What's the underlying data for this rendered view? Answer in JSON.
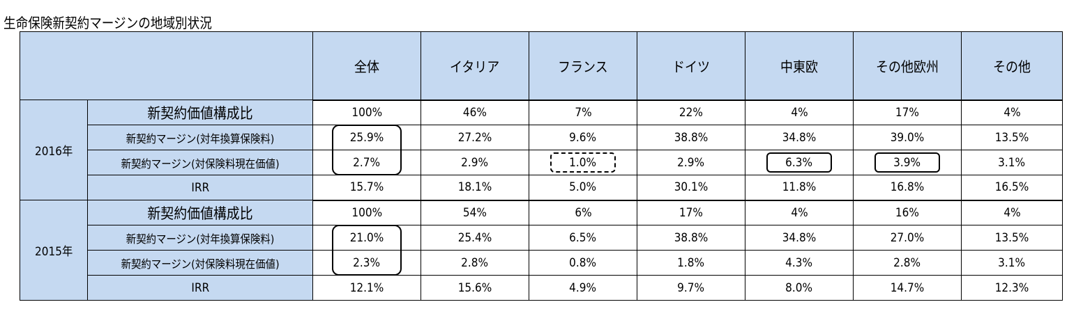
{
  "title": "生命保険新契約マージンの地域別状況",
  "columns": [
    "全体",
    "イタリア",
    "フランス",
    "ドイツ",
    "中東欧",
    "その他欧州",
    "その他"
  ],
  "groups": [
    {
      "year": "2016年",
      "rows": [
        {
          "label": "新契約価値構成比",
          "values": [
            "100%",
            "46%",
            "7%",
            "22%",
            "4%",
            "17%",
            "4%"
          ]
        },
        {
          "label": "新契約マージン(対年換算保険料)",
          "values": [
            "25.9%",
            "27.2%",
            "9.6%",
            "38.8%",
            "34.8%",
            "39.0%",
            "13.5%"
          ]
        },
        {
          "label": "新契約マージン(対保険料現在価値)",
          "values": [
            "2.7%",
            "2.9%",
            "1.0%",
            "2.9%",
            "6.3%",
            "3.9%",
            "3.1%"
          ]
        },
        {
          "label": "IRR",
          "values": [
            "15.7%",
            "18.1%",
            "5.0%",
            "30.1%",
            "11.8%",
            "16.8%",
            "16.5%"
          ]
        }
      ]
    },
    {
      "year": "2015年",
      "rows": [
        {
          "label": "新契約価値構成比",
          "values": [
            "100%",
            "54%",
            "6%",
            "17%",
            "4%",
            "16%",
            "4%"
          ]
        },
        {
          "label": "新契約マージン(対年換算保険料)",
          "values": [
            "21.0%",
            "25.4%",
            "6.5%",
            "38.8%",
            "34.8%",
            "27.0%",
            "13.5%"
          ]
        },
        {
          "label": "新契約マージン(対保険料現在価値)",
          "values": [
            "2.3%",
            "2.8%",
            "0.8%",
            "1.8%",
            "4.3%",
            "2.8%",
            "3.1%"
          ]
        },
        {
          "label": "IRR",
          "values": [
            "12.1%",
            "15.6%",
            "4.9%",
            "9.7%",
            "8.0%",
            "14.7%",
            "12.3%"
          ]
        }
      ]
    }
  ],
  "colors": {
    "header_bg": "#c5d9f1",
    "border": "#000000"
  }
}
